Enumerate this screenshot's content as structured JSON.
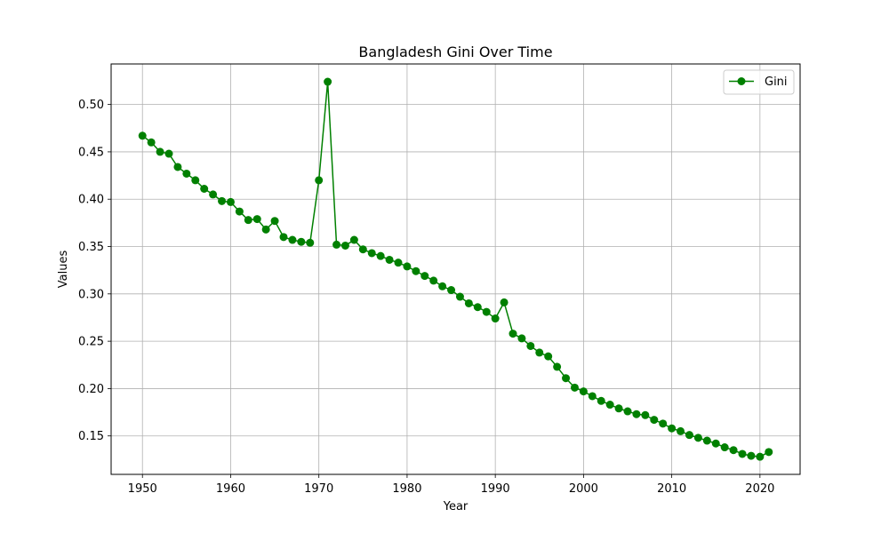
{
  "chart_data": {
    "type": "line",
    "title": "Bangladesh Gini Over Time",
    "xlabel": "Year",
    "ylabel": "Values",
    "xlim": [
      1946.45,
      2024.55
    ],
    "ylim": [
      0.1094,
      0.5428
    ],
    "xticks": [
      "1950",
      "1960",
      "1970",
      "1980",
      "1990",
      "2000",
      "2010",
      "2020"
    ],
    "yticks": [
      "0.15",
      "0.20",
      "0.25",
      "0.30",
      "0.35",
      "0.40",
      "0.45",
      "0.50"
    ],
    "grid": true,
    "legend_position": "top-right",
    "series": [
      {
        "name": "Gini",
        "color": "#008000",
        "marker": "circle",
        "x": [
          1950,
          1951,
          1952,
          1953,
          1954,
          1955,
          1956,
          1957,
          1958,
          1959,
          1960,
          1961,
          1962,
          1963,
          1964,
          1965,
          1966,
          1967,
          1968,
          1969,
          1970,
          1971,
          1972,
          1973,
          1974,
          1975,
          1976,
          1977,
          1978,
          1979,
          1980,
          1981,
          1982,
          1983,
          1984,
          1985,
          1986,
          1987,
          1988,
          1989,
          1990,
          1991,
          1992,
          1993,
          1994,
          1995,
          1996,
          1997,
          1998,
          1999,
          2000,
          2001,
          2002,
          2003,
          2004,
          2005,
          2006,
          2007,
          2008,
          2009,
          2010,
          2011,
          2012,
          2013,
          2014,
          2015,
          2016,
          2017,
          2018,
          2019,
          2020,
          2021
        ],
        "y": [
          0.467,
          0.46,
          0.45,
          0.448,
          0.434,
          0.427,
          0.42,
          0.411,
          0.405,
          0.398,
          0.397,
          0.387,
          0.378,
          0.379,
          0.368,
          0.377,
          0.36,
          0.357,
          0.355,
          0.354,
          0.42,
          0.524,
          0.352,
          0.351,
          0.357,
          0.347,
          0.343,
          0.34,
          0.336,
          0.333,
          0.329,
          0.324,
          0.319,
          0.314,
          0.308,
          0.304,
          0.297,
          0.29,
          0.286,
          0.281,
          0.274,
          0.291,
          0.258,
          0.253,
          0.245,
          0.238,
          0.234,
          0.223,
          0.211,
          0.201,
          0.197,
          0.192,
          0.187,
          0.183,
          0.179,
          0.176,
          0.173,
          0.172,
          0.167,
          0.163,
          0.158,
          0.155,
          0.151,
          0.148,
          0.145,
          0.142,
          0.138,
          0.135,
          0.131,
          0.129,
          0.128,
          0.133
        ]
      }
    ]
  }
}
